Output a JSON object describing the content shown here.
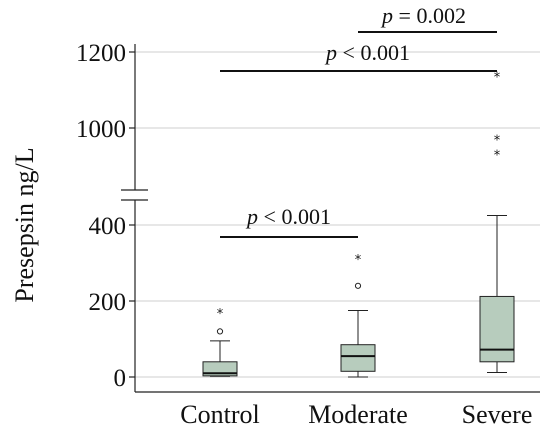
{
  "chart_data": {
    "type": "box",
    "ylabel": "Presepsin ng/L",
    "categories": [
      "Control",
      "Moderate",
      "Severe"
    ],
    "y_axis_break": {
      "from": 450,
      "to": 900
    },
    "yticks_lower": [
      "0",
      "200",
      "400"
    ],
    "yticks_upper": [
      "1000",
      "1200"
    ],
    "series": [
      {
        "category": "Control",
        "whisker_low": 2,
        "q1": 3,
        "median": 10,
        "q3": 40,
        "whisker_high": 95,
        "outliers": [
          {
            "value": 120,
            "kind": "circle"
          },
          {
            "value": 168,
            "kind": "star"
          }
        ]
      },
      {
        "category": "Moderate",
        "whisker_low": 0,
        "q1": 15,
        "median": 55,
        "q3": 85,
        "whisker_high": 175,
        "outliers": [
          {
            "value": 240,
            "kind": "circle"
          },
          {
            "value": 310,
            "kind": "star"
          }
        ]
      },
      {
        "category": "Severe",
        "whisker_low": 12,
        "q1": 40,
        "median": 72,
        "q3": 212,
        "whisker_high": 425,
        "outliers": [
          {
            "value": 930,
            "kind": "star"
          },
          {
            "value": 970,
            "kind": "star"
          },
          {
            "value": 1135,
            "kind": "star"
          }
        ]
      }
    ],
    "significance": [
      {
        "from": "Control",
        "to": "Moderate",
        "label": "< 0.001"
      },
      {
        "from": "Control",
        "to": "Severe",
        "label": "< 0.001"
      },
      {
        "from": "Moderate",
        "to": "Severe",
        "label": "= 0.002"
      }
    ],
    "grid": true
  }
}
